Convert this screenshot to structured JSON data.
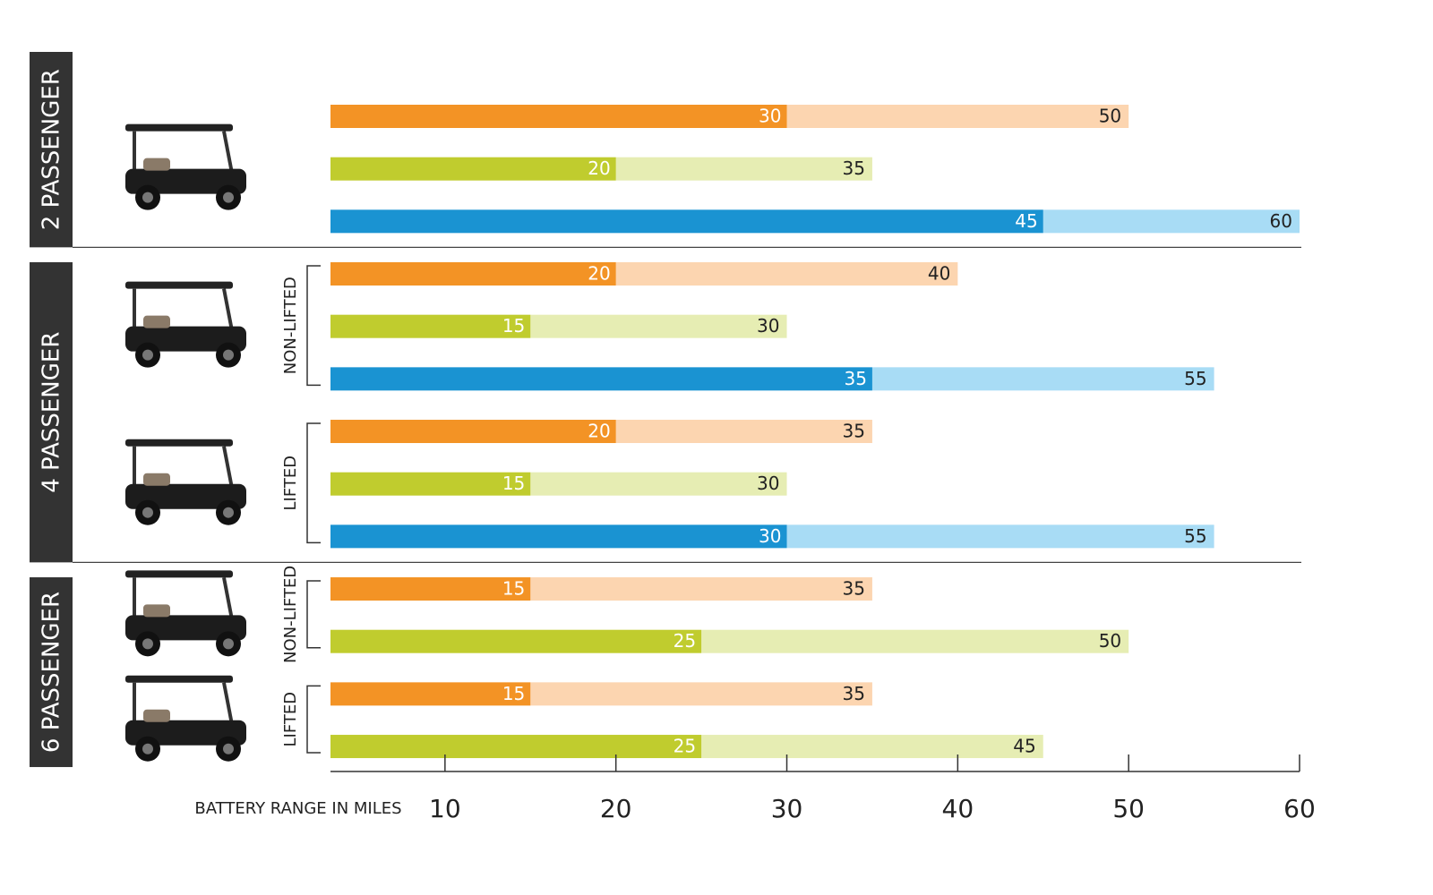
{
  "chart_data": {
    "type": "range-bar",
    "x_label": "BATTERY RANGE IN MILES",
    "xlim": [
      3.3,
      60
    ],
    "xticks": [
      10,
      20,
      30,
      40,
      50,
      60
    ],
    "groups": [
      {
        "label": "2 PASSENGER",
        "subgroups": [
          {
            "rows": [
              {
                "colors": [
                  "#f39325",
                  "#fcd5b0"
                ],
                "values": [
                  30,
                  50
                ]
              },
              {
                "colors": [
                  "#c0cc2e",
                  "#e6edb3"
                ],
                "values": [
                  20,
                  35
                ]
              },
              {
                "colors": [
                  "#1a93d2",
                  "#a8dcf5"
                ],
                "values": [
                  45,
                  60
                ]
              }
            ]
          }
        ]
      },
      {
        "label": "4 PASSENGER",
        "subgroups": [
          {
            "label": "NON-LIFTED",
            "rows": [
              {
                "colors": [
                  "#f39325",
                  "#fcd5b0"
                ],
                "values": [
                  20,
                  40
                ]
              },
              {
                "colors": [
                  "#c0cc2e",
                  "#e6edb3"
                ],
                "values": [
                  15,
                  30
                ]
              },
              {
                "colors": [
                  "#1a93d2",
                  "#a8dcf5"
                ],
                "values": [
                  35,
                  55
                ]
              }
            ]
          },
          {
            "label": "LIFTED",
            "rows": [
              {
                "colors": [
                  "#f39325",
                  "#fcd5b0"
                ],
                "values": [
                  20,
                  35
                ]
              },
              {
                "colors": [
                  "#c0cc2e",
                  "#e6edb3"
                ],
                "values": [
                  15,
                  30
                ]
              },
              {
                "colors": [
                  "#1a93d2",
                  "#a8dcf5"
                ],
                "values": [
                  30,
                  55
                ]
              }
            ]
          }
        ]
      },
      {
        "label": "6 PASSENGER",
        "subgroups": [
          {
            "label": "NON-LIFTED",
            "rows": [
              {
                "colors": [
                  "#f39325",
                  "#fcd5b0"
                ],
                "values": [
                  15,
                  35
                ]
              },
              {
                "colors": [
                  "#c0cc2e",
                  "#e6edb3"
                ],
                "values": [
                  25,
                  50
                ]
              }
            ]
          },
          {
            "label": "LIFTED",
            "rows": [
              {
                "colors": [
                  "#f39325",
                  "#fcd5b0"
                ],
                "values": [
                  15,
                  35
                ]
              },
              {
                "colors": [
                  "#c0cc2e",
                  "#e6edb3"
                ],
                "values": [
                  25,
                  45
                ]
              }
            ]
          }
        ]
      }
    ]
  }
}
